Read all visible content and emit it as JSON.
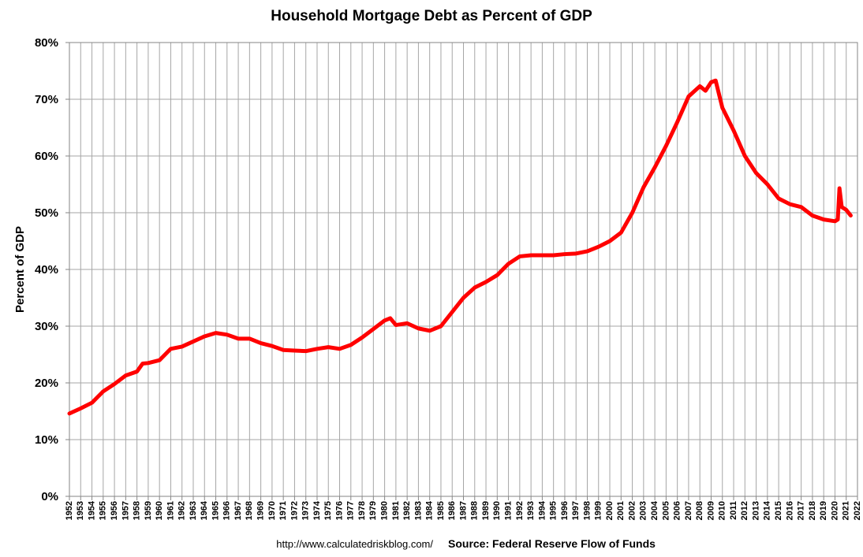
{
  "chart_data": {
    "type": "line",
    "title": "Household Mortgage Debt as Percent of GDP",
    "y_label": "Percent of GDP",
    "source_url": "http://www.calculatedriskblog.com/",
    "source": "Source: Federal Reserve Flow of Funds",
    "color": "#ff0000",
    "grid": true,
    "x": [
      1952,
      1953,
      1954,
      1955,
      1956,
      1957,
      1958,
      1958.5,
      1959,
      1960,
      1961,
      1962,
      1963,
      1964,
      1965,
      1966,
      1967,
      1968,
      1969,
      1970,
      1971,
      1972,
      1973,
      1974,
      1975,
      1976,
      1977,
      1978,
      1979,
      1980,
      1980.5,
      1981,
      1982,
      1983,
      1984,
      1985,
      1986,
      1987,
      1988,
      1989,
      1990,
      1991,
      1992,
      1993,
      1994,
      1995,
      1996,
      1997,
      1998,
      1999,
      2000,
      2001,
      2002,
      2003,
      2004,
      2005,
      2006,
      2007,
      2008,
      2008.5,
      2009,
      2009.4,
      2010,
      2011,
      2012,
      2013,
      2014,
      2015,
      2016,
      2017,
      2018,
      2019,
      2020,
      2020.25,
      2020.4,
      2020.6,
      2021,
      2021.4
    ],
    "values": [
      14.6,
      15.5,
      16.5,
      18.5,
      19.8,
      21.3,
      22.0,
      23.4,
      23.5,
      24.0,
      26.0,
      26.4,
      27.3,
      28.2,
      28.8,
      28.5,
      27.8,
      27.8,
      27.0,
      26.5,
      25.8,
      25.7,
      25.6,
      26.0,
      26.3,
      26.0,
      26.7,
      28.0,
      29.5,
      31.0,
      31.4,
      30.2,
      30.5,
      29.6,
      29.2,
      30.0,
      32.5,
      35.0,
      36.8,
      37.8,
      39.0,
      41.0,
      42.3,
      42.5,
      42.5,
      42.5,
      42.7,
      42.8,
      43.2,
      44.0,
      45.0,
      46.5,
      50.0,
      54.5,
      58.0,
      61.8,
      66.0,
      70.5,
      72.3,
      71.5,
      73.0,
      73.3,
      68.5,
      64.5,
      60.0,
      57.0,
      55.0,
      52.5,
      51.5,
      51.0,
      49.5,
      48.8,
      48.5,
      48.8,
      54.3,
      51.0,
      50.5,
      49.5
    ],
    "xlim": [
      1952,
      2022
    ],
    "xticks": [
      1952,
      1953,
      1954,
      1955,
      1956,
      1957,
      1958,
      1959,
      1960,
      1961,
      1962,
      1963,
      1964,
      1965,
      1966,
      1967,
      1968,
      1969,
      1970,
      1971,
      1972,
      1973,
      1974,
      1975,
      1976,
      1977,
      1978,
      1979,
      1980,
      1981,
      1982,
      1983,
      1984,
      1985,
      1986,
      1987,
      1988,
      1989,
      1990,
      1991,
      1992,
      1993,
      1994,
      1995,
      1996,
      1997,
      1998,
      1999,
      2000,
      2001,
      2002,
      2003,
      2004,
      2005,
      2006,
      2007,
      2008,
      2009,
      2010,
      2011,
      2012,
      2013,
      2014,
      2015,
      2016,
      2017,
      2018,
      2019,
      2020,
      2021,
      2022
    ],
    "ylim": [
      0,
      80
    ],
    "yticks": [
      {
        "value": 0,
        "label": "0%"
      },
      {
        "value": 10,
        "label": "10%"
      },
      {
        "value": 20,
        "label": "20%"
      },
      {
        "value": 30,
        "label": "30%"
      },
      {
        "value": 40,
        "label": "40%"
      },
      {
        "value": 50,
        "label": "50%"
      },
      {
        "value": 60,
        "label": "60%"
      },
      {
        "value": 70,
        "label": "70%"
      },
      {
        "value": 80,
        "label": "80%"
      }
    ]
  }
}
